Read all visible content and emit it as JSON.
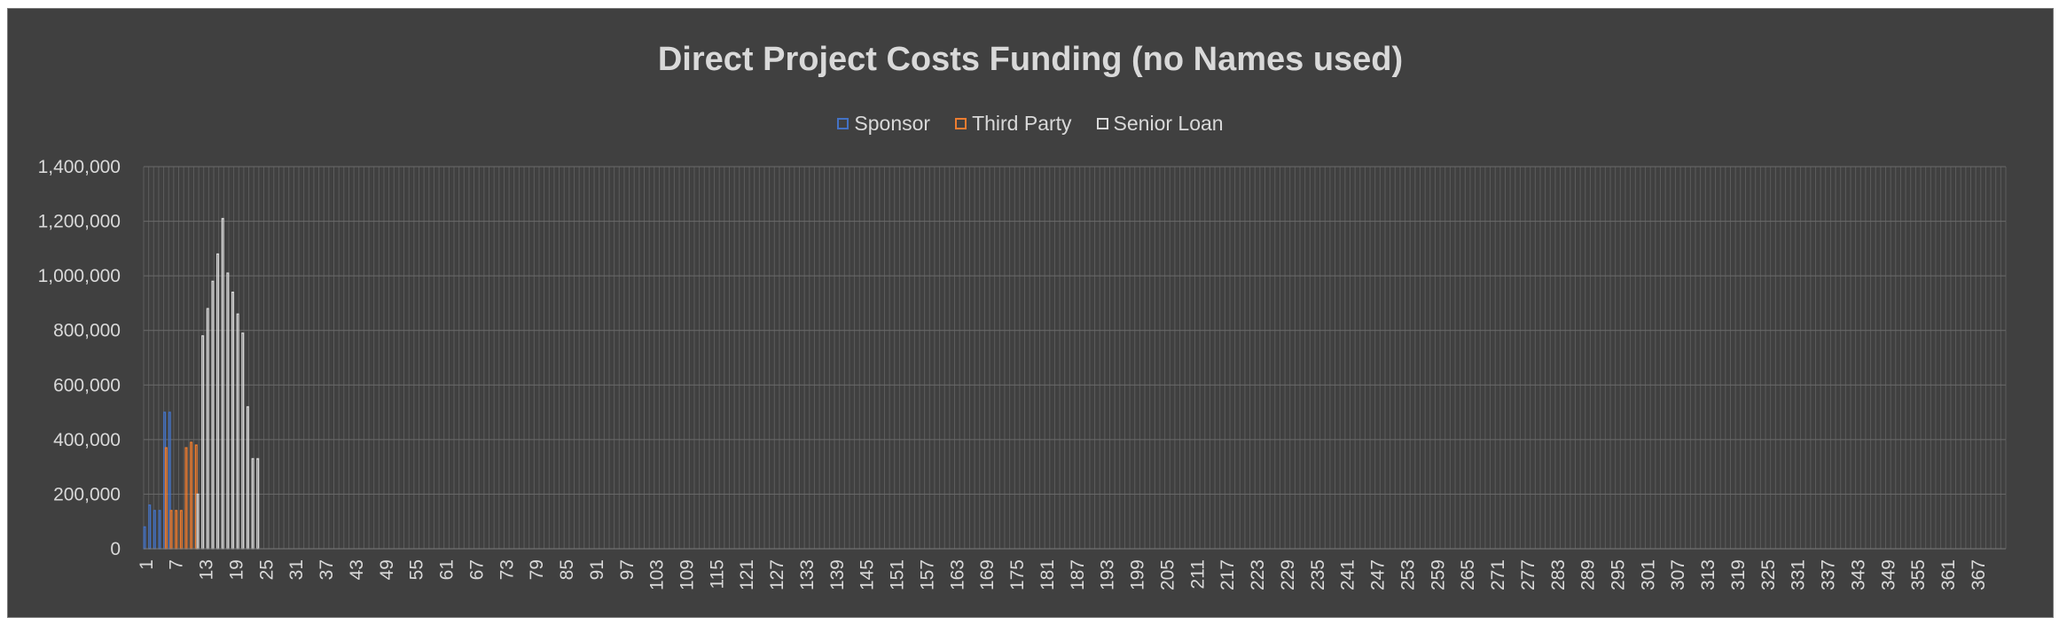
{
  "chart_data": {
    "type": "bar",
    "stacked": false,
    "title": "Direct Project Costs Funding (no Names used)",
    "xlabel": "",
    "ylabel": "",
    "ylim": [
      0,
      1400000
    ],
    "yticks": [
      0,
      200000,
      400000,
      600000,
      800000,
      1000000,
      1200000,
      1400000
    ],
    "ytick_labels": [
      "0",
      "200,000",
      "400,000",
      "600,000",
      "800,000",
      "1,000,000",
      "1,200,000",
      "1,400,000"
    ],
    "x_categories_range": [
      1,
      372
    ],
    "xtick_labels": [
      "1",
      "7",
      "13",
      "19",
      "25",
      "31",
      "37",
      "43",
      "49",
      "55",
      "61",
      "67",
      "73",
      "79",
      "85",
      "91",
      "97",
      "103",
      "109",
      "115",
      "121",
      "127",
      "133",
      "139",
      "145",
      "151",
      "157",
      "163",
      "169",
      "175",
      "181",
      "187",
      "193",
      "199",
      "205",
      "211",
      "217",
      "223",
      "229",
      "235",
      "241",
      "247",
      "253",
      "259",
      "265",
      "271",
      "277",
      "283",
      "289",
      "295",
      "301",
      "307",
      "313",
      "319",
      "325",
      "331",
      "337",
      "343",
      "349",
      "355",
      "361",
      "367"
    ],
    "grid": true,
    "legend_position": "top",
    "series": [
      {
        "name": "Sponsor",
        "color": "#4472c4",
        "points": [
          [
            1,
            80000
          ],
          [
            2,
            160000
          ],
          [
            3,
            140000
          ],
          [
            4,
            140000
          ],
          [
            5,
            500000
          ],
          [
            6,
            500000
          ]
        ]
      },
      {
        "name": "Third Party",
        "color": "#ed7d31",
        "points": [
          [
            5,
            370000
          ],
          [
            6,
            140000
          ],
          [
            7,
            140000
          ],
          [
            8,
            140000
          ],
          [
            9,
            370000
          ],
          [
            10,
            390000
          ],
          [
            11,
            380000
          ]
        ]
      },
      {
        "name": "Senior Loan",
        "color": "#d9d9d9",
        "points": [
          [
            11,
            200000
          ],
          [
            12,
            780000
          ],
          [
            13,
            880000
          ],
          [
            14,
            980000
          ],
          [
            15,
            1080000
          ],
          [
            16,
            1210000
          ],
          [
            17,
            1010000
          ],
          [
            18,
            940000
          ],
          [
            19,
            860000
          ],
          [
            20,
            790000
          ],
          [
            21,
            520000
          ],
          [
            22,
            330000
          ],
          [
            23,
            330000
          ]
        ]
      }
    ]
  }
}
